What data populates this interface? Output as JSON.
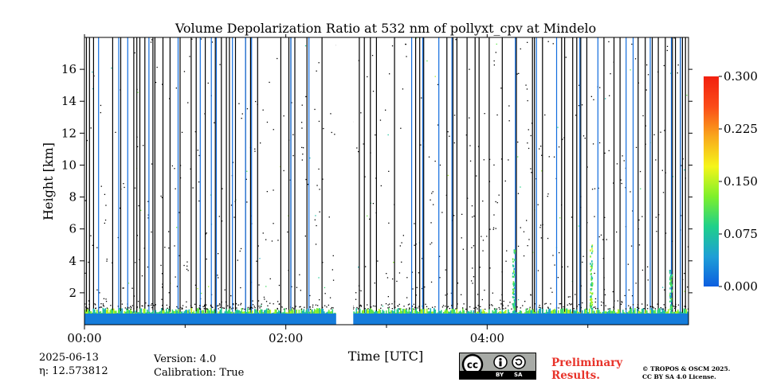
{
  "chart_data": {
    "type": "heatmap",
    "title": "Volume Depolarization Ratio at 532 nm of pollyxt_cpv at Mindelo",
    "xlabel": "Time [UTC]",
    "ylabel": "Height [km]",
    "xlim_hours": [
      0,
      6
    ],
    "ylim_km": [
      0,
      18
    ],
    "x_ticks": [
      {
        "hour": 0,
        "label": "00:00"
      },
      {
        "hour": 2,
        "label": "02:00"
      },
      {
        "hour": 4,
        "label": "04:00"
      }
    ],
    "x_minor_ticks_hours": [
      1,
      3,
      5
    ],
    "y_ticks": [
      {
        "km": 2,
        "label": "2"
      },
      {
        "km": 4,
        "label": "4"
      },
      {
        "km": 6,
        "label": "6"
      },
      {
        "km": 8,
        "label": "8"
      },
      {
        "km": 10,
        "label": "10"
      },
      {
        "km": 12,
        "label": "12"
      },
      {
        "km": 14,
        "label": "14"
      },
      {
        "km": 16,
        "label": "16"
      }
    ],
    "colorbar": {
      "range": [
        0.0,
        0.3
      ],
      "ticks": [
        {
          "value": 0.0,
          "label": "0.000"
        },
        {
          "value": 0.075,
          "label": "0.075"
        },
        {
          "value": 0.15,
          "label": "0.150"
        },
        {
          "value": 0.225,
          "label": "0.225"
        },
        {
          "value": 0.3,
          "label": "0.300"
        }
      ],
      "colors": [
        "#0d5ee0",
        "#1e9fd6",
        "#1fd08a",
        "#7ef02b",
        "#f5f51a",
        "#f9a81c",
        "#fb4b18",
        "#f2200f"
      ]
    },
    "data_gaps_hours": [
      [
        2.5,
        2.67
      ]
    ],
    "near_surface_layer": {
      "top_km": 1.0,
      "mean_value": 0.02,
      "edge_value": 0.12
    },
    "elevated_features": [
      {
        "hour": 4.26,
        "top_km": 5.0,
        "value": 0.1
      },
      {
        "hour": 5.03,
        "top_km": 5.2,
        "value": 0.12
      },
      {
        "hour": 5.82,
        "top_km": 3.5,
        "value": 0.1
      }
    ],
    "profile_columns": {
      "black_hours": [
        0.02,
        0.05,
        0.09,
        0.28,
        0.36,
        0.49,
        0.52,
        0.55,
        0.6,
        0.68,
        0.7,
        0.78,
        0.85,
        0.95,
        1.06,
        1.11,
        1.2,
        1.3,
        1.36,
        1.41,
        1.44,
        1.5,
        1.6,
        1.65,
        1.72,
        1.95,
        2.03,
        2.05,
        2.09,
        2.21,
        2.36,
        2.73,
        2.78,
        2.84,
        2.9,
        3.08,
        3.29,
        3.33,
        3.37,
        3.6,
        3.66,
        3.7,
        3.8,
        3.88,
        3.92,
        4.02,
        4.15,
        4.29,
        4.45,
        4.47,
        4.55,
        4.74,
        4.77,
        4.85,
        4.89,
        4.93,
        4.99,
        5.16,
        5.26,
        5.32,
        5.5,
        5.57,
        5.64,
        5.7,
        5.77,
        5.84,
        5.87,
        5.92,
        5.94,
        5.97
      ],
      "blue_hours": [
        0.14,
        0.34,
        0.43,
        0.64,
        0.93,
        1.15,
        1.26,
        1.31,
        1.47,
        1.6,
        1.66,
        2.05,
        2.23,
        3.25,
        3.36,
        3.52,
        3.65,
        4.28,
        4.49,
        4.69,
        4.92,
        5.1,
        5.38,
        5.45,
        5.62,
        5.83,
        5.92
      ]
    }
  },
  "footer": {
    "date": "2025-06-13",
    "eta": "η: 12.573812",
    "version": "Version: 4.0",
    "calibration": "Calibration: True",
    "preliminary_line1": "Preliminary",
    "preliminary_line2": "Results.",
    "copyright_line1": "© TROPOS & OSCM 2025.",
    "copyright_line2": "CC BY SA 4.0 License.",
    "license_badge": {
      "cc": "cc",
      "by": "BY",
      "sa": "SA"
    }
  }
}
